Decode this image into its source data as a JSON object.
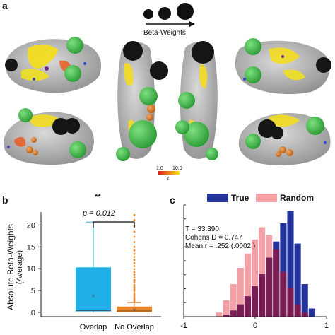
{
  "panel_a": {
    "label": "a",
    "legend_title": "Beta-Weights",
    "colorbar": {
      "min_label": "1.0",
      "max_label": "10.0",
      "unit_label": "z"
    }
  },
  "panel_b": {
    "label": "b",
    "significance": "**",
    "p_value": "p = 0.012"
  },
  "panel_c": {
    "label": "c",
    "legend": [
      "True",
      "Random"
    ],
    "stats": [
      "T = 33.390",
      "Cohens D = 0.747",
      "Mean r = .252 (.0002 )"
    ]
  },
  "chart_data": [
    {
      "type": "box",
      "ylabel": "Absolute Beta-Weights",
      "ylabel_sub": "(Average)",
      "categories": [
        "Overlap",
        "No Overlap"
      ],
      "yticks": [
        0,
        5,
        10,
        15,
        20
      ],
      "ylim": [
        -1,
        23
      ],
      "boxes": [
        {
          "category": "Overlap",
          "whisker_low": 0,
          "q1": 0.2,
          "median": 0.4,
          "q3": 10.3,
          "whisker_high": 20.7,
          "mean": 3.8,
          "color": "#1fb0e8",
          "outliers": []
        },
        {
          "category": "No Overlap",
          "whisker_low": 0,
          "q1": 0,
          "median": 0.3,
          "q3": 1.3,
          "whisker_high": 2.2,
          "mean": 0.6,
          "color": "#e8862b",
          "outliers": [
            2.5,
            2.9,
            3.2,
            3.6,
            4.0,
            4.4,
            4.9,
            5.3,
            5.8,
            6.3,
            6.9,
            7.4,
            8.0,
            8.6,
            9.2,
            9.9,
            10.6,
            11.3,
            12.0,
            12.7,
            13.4,
            14.2,
            15.0,
            16.1,
            17.3,
            18.5,
            19.8,
            21.2,
            22.3
          ]
        }
      ],
      "colors": {
        "overlap": "#1fb0e8",
        "no_overlap": "#e8862b"
      }
    },
    {
      "type": "histogram",
      "xticks": [
        "-1",
        "0",
        "1"
      ],
      "xlim": [
        -1,
        1
      ],
      "bin_width": 0.1,
      "series": [
        {
          "name": "True",
          "color": "#24339a",
          "bins": [
            {
              "x": -0.4,
              "v": 1
            },
            {
              "x": -0.3,
              "v": 3
            },
            {
              "x": -0.2,
              "v": 6
            },
            {
              "x": -0.1,
              "v": 10
            },
            {
              "x": 0.0,
              "v": 15
            },
            {
              "x": 0.1,
              "v": 21
            },
            {
              "x": 0.2,
              "v": 29
            },
            {
              "x": 0.3,
              "v": 37
            },
            {
              "x": 0.4,
              "v": 46
            },
            {
              "x": 0.5,
              "v": 52
            },
            {
              "x": 0.6,
              "v": 36
            },
            {
              "x": 0.7,
              "v": 16
            },
            {
              "x": 0.8,
              "v": 4
            }
          ]
        },
        {
          "name": "Random",
          "color": "#f3a0a6",
          "bins": [
            {
              "x": -0.5,
              "v": 2
            },
            {
              "x": -0.4,
              "v": 8
            },
            {
              "x": -0.3,
              "v": 16
            },
            {
              "x": -0.2,
              "v": 24
            },
            {
              "x": -0.1,
              "v": 31
            },
            {
              "x": 0.0,
              "v": 38
            },
            {
              "x": 0.1,
              "v": 44
            },
            {
              "x": 0.2,
              "v": 40
            },
            {
              "x": 0.3,
              "v": 33
            },
            {
              "x": 0.4,
              "v": 22
            },
            {
              "x": 0.5,
              "v": 14
            },
            {
              "x": 0.6,
              "v": 6
            },
            {
              "x": 0.7,
              "v": 2
            }
          ]
        }
      ],
      "overlap_color": "#7a1d52",
      "ylim": [
        0,
        55
      ]
    }
  ]
}
